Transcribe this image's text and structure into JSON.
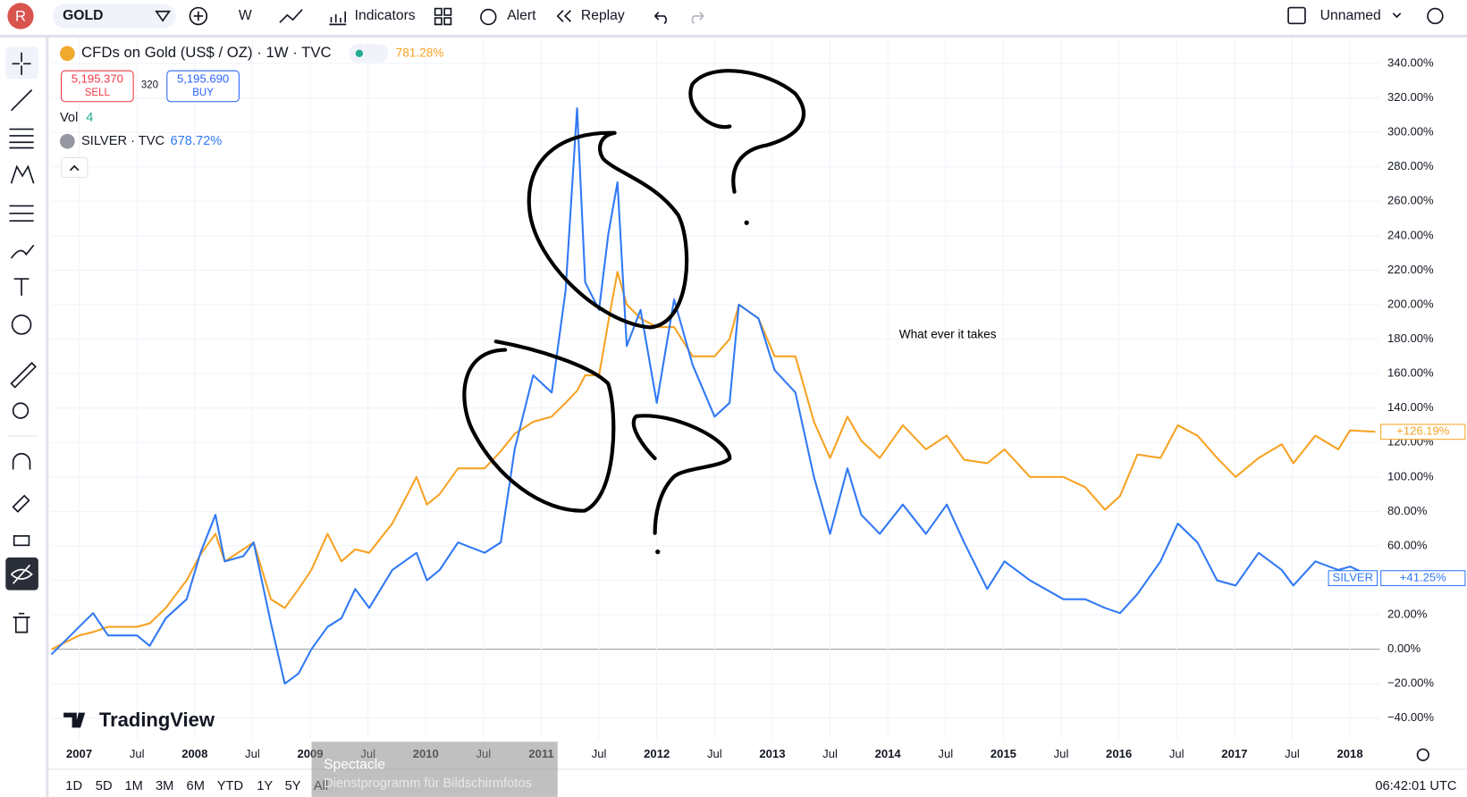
{
  "toolbar": {
    "avatar": "R",
    "symbol": "GOLD",
    "interval": "W",
    "indicators": "Indicators",
    "alert": "Alert",
    "replay": "Replay",
    "layout_name": "Unnamed"
  },
  "legend": {
    "main": "CFDs on Gold (US$ / OZ) · 1W · TVC",
    "main_change": "781.28%",
    "sell_price": "5,195.370",
    "sell": "SELL",
    "spread": "320",
    "buy_price": "5,195.690",
    "buy": "BUY",
    "vol": "Vol",
    "vol_value": "4",
    "compare": "SILVER · TVC",
    "compare_change": "678.72%"
  },
  "chart_data": {
    "type": "line",
    "x": [
      2006.76,
      2007.0,
      2007.12,
      2007.25,
      2007.5,
      2007.61,
      2007.75,
      2007.93,
      2008.05,
      2008.18,
      2008.26,
      2008.42,
      2008.51,
      2008.66,
      2008.78,
      2008.9,
      2009.01,
      2009.15,
      2009.27,
      2009.39,
      2009.51,
      2009.71,
      2009.92,
      2010.01,
      2010.12,
      2010.28,
      2010.51,
      2010.65,
      2010.77,
      2010.93,
      2011.09,
      2011.21,
      2011.31,
      2011.38,
      2011.5,
      2011.58,
      2011.66,
      2011.74,
      2011.86,
      2012.0,
      2012.15,
      2012.31,
      2012.5,
      2012.63,
      2012.71,
      2012.88,
      2013.02,
      2013.2,
      2013.36,
      2013.5,
      2013.65,
      2013.77,
      2013.93,
      2014.13,
      2014.33,
      2014.51,
      2014.66,
      2014.86,
      2015.01,
      2015.23,
      2015.52,
      2015.71,
      2015.88,
      2016.01,
      2016.16,
      2016.36,
      2016.51,
      2016.68,
      2016.85,
      2017.01,
      2017.21,
      2017.41,
      2017.51,
      2017.7,
      2017.9,
      2018.0,
      2018.22
    ],
    "xlim": [
      2006.76,
      2018.26
    ],
    "xticks": [
      {
        "value": 2007,
        "label": "2007"
      },
      {
        "value": 2007.5,
        "label": "Jul"
      },
      {
        "value": 2008,
        "label": "2008"
      },
      {
        "value": 2008.5,
        "label": "Jul"
      },
      {
        "value": 2009,
        "label": "2009"
      },
      {
        "value": 2009.5,
        "label": "Jul"
      },
      {
        "value": 2010,
        "label": "2010"
      },
      {
        "value": 2010.5,
        "label": "Jul"
      },
      {
        "value": 2011,
        "label": "2011"
      },
      {
        "value": 2011.5,
        "label": "Jul"
      },
      {
        "value": 2012,
        "label": "2012"
      },
      {
        "value": 2012.5,
        "label": "Jul"
      },
      {
        "value": 2013,
        "label": "2013"
      },
      {
        "value": 2013.5,
        "label": "Jul"
      },
      {
        "value": 2014,
        "label": "2014"
      },
      {
        "value": 2014.5,
        "label": "Jul"
      },
      {
        "value": 2015,
        "label": "2015"
      },
      {
        "value": 2015.5,
        "label": "Jul"
      },
      {
        "value": 2016,
        "label": "2016"
      },
      {
        "value": 2016.5,
        "label": "Jul"
      },
      {
        "value": 2017,
        "label": "2017"
      },
      {
        "value": 2017.5,
        "label": "Jul"
      },
      {
        "value": 2018,
        "label": "2018"
      }
    ],
    "ylim": [
      -52,
      355
    ],
    "yticks": [
      {
        "value": -40,
        "label": "−40.00%"
      },
      {
        "value": -20,
        "label": "−20.00%"
      },
      {
        "value": 0,
        "label": "0.00%"
      },
      {
        "value": 20,
        "label": "20.00%"
      },
      {
        "value": 40,
        "label": "40.00%"
      },
      {
        "value": 60,
        "label": "60.00%"
      },
      {
        "value": 80,
        "label": "80.00%"
      },
      {
        "value": 100,
        "label": "100.00%"
      },
      {
        "value": 120,
        "label": "120.00%"
      },
      {
        "value": 140,
        "label": "140.00%"
      },
      {
        "value": 160,
        "label": "160.00%"
      },
      {
        "value": 180,
        "label": "180.00%"
      },
      {
        "value": 200,
        "label": "200.00%"
      },
      {
        "value": 220,
        "label": "220.00%"
      },
      {
        "value": 240,
        "label": "240.00%"
      },
      {
        "value": 260,
        "label": "260.00%"
      },
      {
        "value": 280,
        "label": "280.00%"
      },
      {
        "value": 300,
        "label": "300.00%"
      },
      {
        "value": 320,
        "label": "320.00%"
      },
      {
        "value": 340,
        "label": "340.00%"
      }
    ],
    "grid": true,
    "series": [
      {
        "color": "#f7a325",
        "last_label": "+126.19%",
        "values": [
          0,
          8,
          10,
          13,
          13,
          15,
          24,
          40,
          55,
          67,
          51,
          58,
          62,
          29,
          24,
          35,
          46,
          67,
          51,
          58,
          56,
          73,
          100,
          84,
          90,
          105,
          105,
          115,
          125,
          132,
          135,
          143,
          150,
          159,
          159,
          190,
          219,
          200,
          192,
          187,
          187,
          170,
          170,
          180,
          200,
          192,
          170,
          170,
          132,
          111,
          135,
          121,
          111,
          130,
          116,
          124,
          110,
          108,
          116,
          100,
          100,
          94,
          81,
          89,
          113,
          111,
          130,
          124,
          111,
          100,
          111,
          119,
          108,
          124,
          116,
          127,
          126.19
        ]
      },
      {
        "name": "SILVER",
        "color": "#3179f5",
        "last_label": "+41.25%",
        "values": [
          -3,
          13,
          21,
          8,
          8,
          2,
          18,
          29,
          56,
          78,
          51,
          54,
          62,
          15,
          -20,
          -14,
          0,
          13,
          18,
          35,
          24,
          46,
          56,
          40,
          46,
          62,
          56,
          62,
          116,
          159,
          149,
          208,
          314,
          213,
          197,
          241,
          271,
          176,
          197,
          143,
          203,
          165,
          135,
          143,
          200,
          192,
          162,
          149,
          100,
          67,
          105,
          78,
          67,
          84,
          67,
          84,
          62,
          35,
          51,
          40,
          29,
          29,
          24,
          21,
          32,
          51,
          73,
          62,
          40,
          37,
          56,
          46,
          37,
          51,
          46,
          48,
          41.25
        ]
      }
    ],
    "annotation": "What ever it takes",
    "watermark": "TradingView"
  },
  "bottom_bar": {
    "ranges": [
      "1D",
      "5D",
      "1M",
      "3M",
      "6M",
      "YTD",
      "1Y",
      "5Y",
      "All"
    ],
    "clock": "06:42:01 UTC"
  },
  "tooltip": {
    "title": "Spectacle",
    "subtitle": "Dienstprogramm für Bildschirmfotos"
  }
}
